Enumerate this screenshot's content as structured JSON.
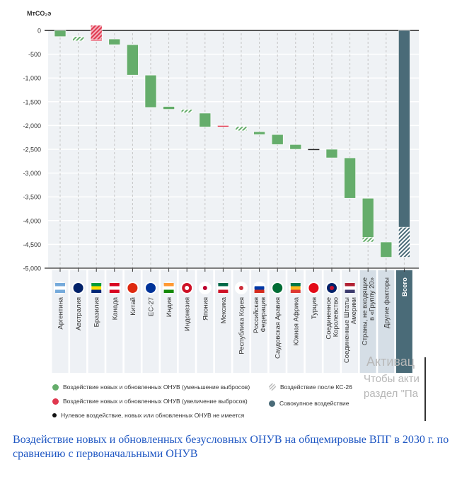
{
  "chart_data": {
    "type": "bar",
    "subtype": "waterfall",
    "ylabel": "МтCO₂э",
    "ylim": [
      -5000,
      200
    ],
    "yticks": [
      0,
      -500,
      -1000,
      -1500,
      -2000,
      -2500,
      -3000,
      -3500,
      -4000,
      -4500,
      -5000
    ],
    "ytick_labels": [
      "0",
      "-500",
      "-1,000",
      "-1,500",
      "-2,000",
      "-2,500",
      "-3,000",
      "-3,500",
      "-4,000",
      "-4,500",
      "-5,000"
    ],
    "categories": [
      {
        "label": [
          "Аргентина"
        ],
        "flag": "argentina",
        "bg": "country",
        "segments": [
          {
            "from": 0,
            "to": -130,
            "kind": "decrease"
          }
        ]
      },
      {
        "label": [
          "Австралия"
        ],
        "flag": "australia",
        "bg": "country",
        "segments": [
          {
            "from": -130,
            "to": -220,
            "kind": "post-cop26-decrease"
          }
        ]
      },
      {
        "label": [
          "Бразилия"
        ],
        "flag": "brazil",
        "bg": "country",
        "segments": [
          {
            "from": -220,
            "to": -190,
            "kind": "increase"
          },
          {
            "from": -190,
            "to": 110,
            "kind": "post-cop26-increase"
          }
        ]
      },
      {
        "label": [
          "Канада"
        ],
        "flag": "canada",
        "bg": "country",
        "segments": [
          {
            "from": -180,
            "to": -300,
            "kind": "decrease"
          }
        ]
      },
      {
        "label": [
          "Китай"
        ],
        "flag": "china",
        "bg": "country",
        "segments": [
          {
            "from": -300,
            "to": -940,
            "kind": "decrease"
          }
        ]
      },
      {
        "label": [
          "ЕС-27"
        ],
        "flag": "eu",
        "bg": "country",
        "segments": [
          {
            "from": -940,
            "to": -1620,
            "kind": "decrease"
          }
        ]
      },
      {
        "label": [
          "Индия"
        ],
        "flag": "india",
        "bg": "country",
        "segments": [
          {
            "from": -1600,
            "to": -1660,
            "kind": "decrease"
          }
        ]
      },
      {
        "label": [
          "Индонезия"
        ],
        "flag": "indonesia",
        "bg": "country",
        "segments": [
          {
            "from": -1660,
            "to": -1730,
            "kind": "post-cop26-decrease"
          }
        ]
      },
      {
        "label": [
          "Япония"
        ],
        "flag": "japan",
        "bg": "country",
        "segments": [
          {
            "from": -1740,
            "to": -2030,
            "kind": "decrease"
          }
        ]
      },
      {
        "label": [
          "Мексика"
        ],
        "flag": "mexico",
        "bg": "country",
        "segments": [
          {
            "from": -2000,
            "to": -2020,
            "kind": "increase"
          }
        ]
      },
      {
        "label": [
          "Республика Корея"
        ],
        "flag": "korea",
        "bg": "country",
        "segments": [
          {
            "from": -2020,
            "to": -2110,
            "kind": "post-cop26-decrease"
          }
        ]
      },
      {
        "label": [
          "Российская",
          "Федерация"
        ],
        "flag": "russia",
        "bg": "country",
        "segments": [
          {
            "from": -2130,
            "to": -2190,
            "kind": "decrease"
          }
        ]
      },
      {
        "label": [
          "Саудовская Аравия"
        ],
        "flag": "saudi",
        "bg": "country",
        "segments": [
          {
            "from": -2190,
            "to": -2400,
            "kind": "decrease"
          }
        ]
      },
      {
        "label": [
          "Южная Африка"
        ],
        "flag": "southafrica",
        "bg": "country",
        "segments": [
          {
            "from": -2400,
            "to": -2500,
            "kind": "decrease"
          }
        ]
      },
      {
        "label": [
          "Турция"
        ],
        "flag": "turkey",
        "bg": "country",
        "segments": [
          {
            "from": -2495,
            "to": -2505,
            "kind": "zero"
          }
        ]
      },
      {
        "label": [
          "Соединенное",
          "Королевство"
        ],
        "flag": "uk",
        "bg": "country",
        "segments": [
          {
            "from": -2500,
            "to": -2680,
            "kind": "decrease"
          }
        ]
      },
      {
        "label": [
          "Соединенные Штаты",
          "Америки"
        ],
        "flag": "usa",
        "bg": "country",
        "segments": [
          {
            "from": -2680,
            "to": -3530,
            "kind": "decrease"
          }
        ]
      },
      {
        "label": [
          "Страны, не входящие",
          "в «Группу 20»"
        ],
        "flag": null,
        "bg": "group",
        "segments": [
          {
            "from": -3530,
            "to": -4350,
            "kind": "decrease"
          },
          {
            "from": -4350,
            "to": -4450,
            "kind": "post-cop26-decrease"
          }
        ]
      },
      {
        "label": [
          "Другие факторы"
        ],
        "flag": null,
        "bg": "group",
        "segments": [
          {
            "from": -4450,
            "to": -4770,
            "kind": "decrease"
          }
        ]
      },
      {
        "label": [
          "Всего"
        ],
        "flag": null,
        "bg": "total",
        "segments": [
          {
            "from": 0,
            "to": -4140,
            "kind": "total"
          },
          {
            "from": -4140,
            "to": -4770,
            "kind": "post-cop26-total"
          }
        ]
      }
    ],
    "legend": [
      {
        "key": "decrease",
        "label": "Воздействие новых и обновленных ОНУВ (уменьшение выбросов)"
      },
      {
        "key": "increase",
        "label": "Воздействие новых и обновленных ОНУВ (увеличение выбросов)"
      },
      {
        "key": "zero",
        "label": "Нулевое воздействие, новых или обновленных ОНУВ не имеется"
      },
      {
        "key": "post-cop26",
        "label": "Воздействие после КС-26"
      },
      {
        "key": "total",
        "label": "Совокупное воздействие"
      }
    ],
    "legend_placement": "bottom",
    "grid": true
  },
  "colors": {
    "decrease": "#65ad6b",
    "increase": "#e0384f",
    "zero": "#222222",
    "total": "#4a6b78",
    "hatch": "#c9c9c9",
    "plot_bg": "#eff2f5",
    "caption": "#1f57c3"
  },
  "caption": "Воздействие новых и обновленных безусловных ОНУВ на общемировые ВПГ в 2030 г. по сравнению с первоначальными ОНУВ",
  "watermark": {
    "line1": "Активац",
    "line2": "Чтобы акти",
    "line3": "раздел \"Па"
  }
}
